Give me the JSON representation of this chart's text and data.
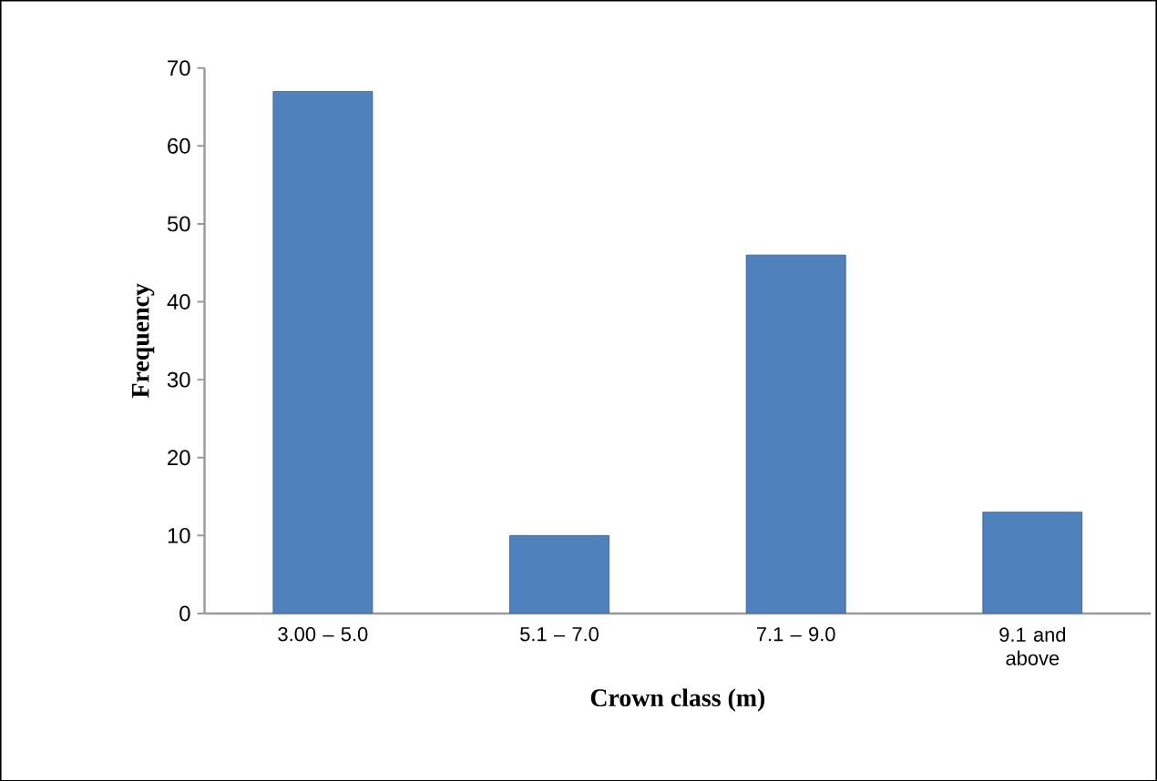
{
  "chart_data": {
    "type": "bar",
    "xlabel": "Crown class (m)",
    "ylabel": "Frequency",
    "categories": [
      "3.00 – 5.0",
      "5.1 – 7.0",
      "7.1 – 9.0",
      "9.1 and above"
    ],
    "values": [
      67,
      10,
      46,
      13
    ],
    "color": "#4f81bd",
    "ylim": [
      0,
      70
    ],
    "yticks": [
      0,
      10,
      20,
      30,
      40,
      50,
      60,
      70
    ],
    "grid": false
  }
}
